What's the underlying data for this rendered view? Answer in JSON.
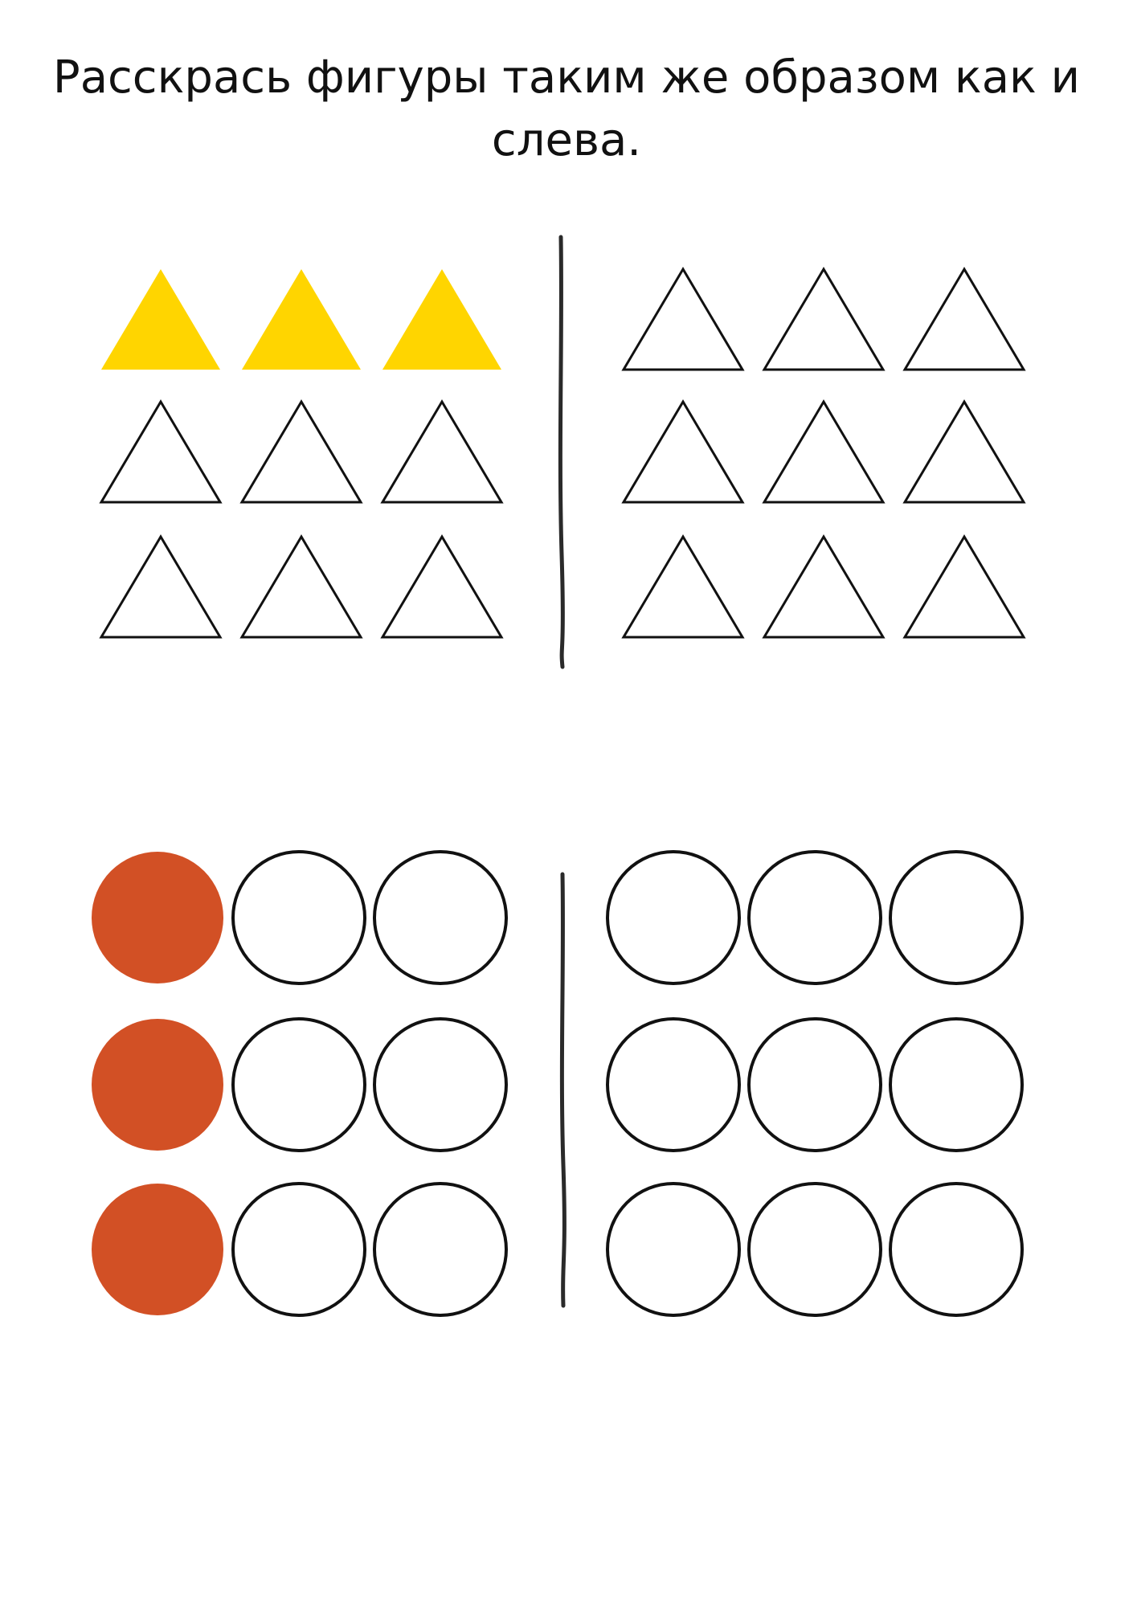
{
  "instruction": {
    "line1": "Расскрась фигуры таким же образом как и",
    "line2": "слева."
  },
  "colors": {
    "outline": "#111111",
    "triangle_fill": "#FFD500",
    "circle_fill": "#D25025",
    "divider": "#2a2a2a"
  },
  "triangles": {
    "sample": [
      [
        "yellow",
        "yellow",
        "yellow"
      ],
      [
        "empty",
        "empty",
        "empty"
      ],
      [
        "empty",
        "empty",
        "empty"
      ]
    ],
    "answer": [
      [
        "empty",
        "empty",
        "empty"
      ],
      [
        "empty",
        "empty",
        "empty"
      ],
      [
        "empty",
        "empty",
        "empty"
      ]
    ]
  },
  "circles": {
    "sample": [
      [
        "orange",
        "empty",
        "empty"
      ],
      [
        "orange",
        "empty",
        "empty"
      ],
      [
        "orange",
        "empty",
        "empty"
      ]
    ],
    "answer": [
      [
        "empty",
        "empty",
        "empty"
      ],
      [
        "empty",
        "empty",
        "empty"
      ],
      [
        "empty",
        "empty",
        "empty"
      ]
    ]
  }
}
